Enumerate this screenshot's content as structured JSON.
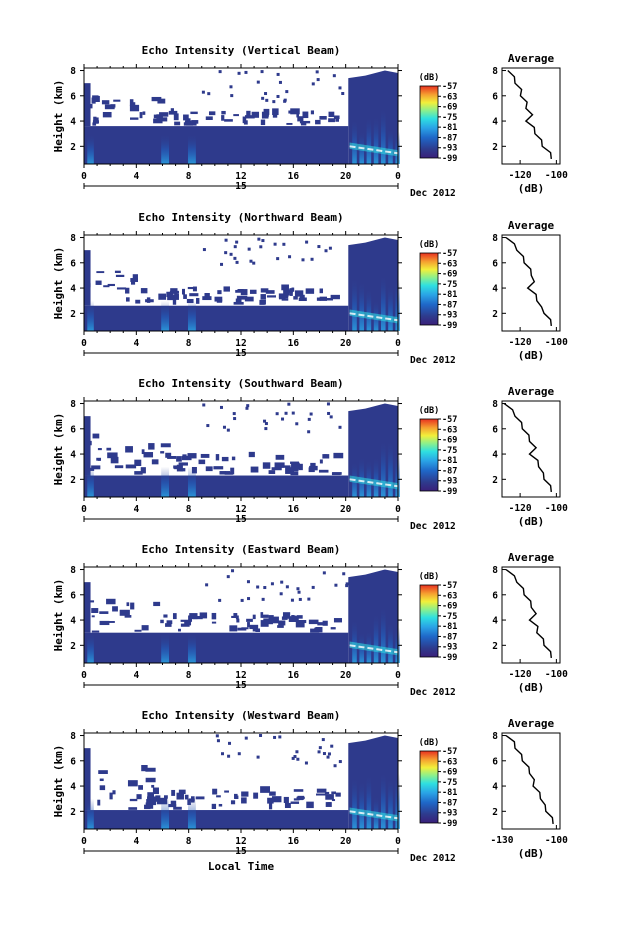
{
  "xlabel": "Local Time",
  "ylabel": "Height (km)",
  "profile_title": "Average",
  "profile_xlabel": "(dB)",
  "colorbar_unit": "(dB)",
  "date_label": "Dec 2012",
  "day_label": "15",
  "x_ticks": [
    "0",
    "4",
    "8",
    "12",
    "16",
    "20",
    "0"
  ],
  "y_ticks": [
    "8",
    "6",
    "4",
    "2"
  ],
  "colorbar_ticks": [
    "-57",
    "-63",
    "-69",
    "-75",
    "-81",
    "-87",
    "-93",
    "-99"
  ],
  "colors": {
    "white": "#ffffff",
    "no_echo_blue": "#2e3a8c",
    "colormap": [
      "#3a1f7a",
      "#2e3a8c",
      "#1f66c7",
      "#2aa4e6",
      "#2fe0e0",
      "#8cf08c",
      "#f2f03a",
      "#f5a030",
      "#e83020"
    ]
  },
  "chart_data": [
    {
      "type": "heatmap",
      "title": "Echo Intensity (Vertical Beam)",
      "xlabel": "",
      "ylabel": "Height (km)",
      "xlim": [
        0,
        24
      ],
      "ylim": [
        0.6,
        8.2
      ],
      "colorbar": {
        "label": "(dB)",
        "range": [
          -99,
          -57
        ],
        "ticks": [
          -57,
          -63,
          -69,
          -75,
          -81,
          -87,
          -93,
          -99
        ]
      },
      "profile": {
        "title": "Average",
        "xlabel": "(dB)",
        "xlim": [
          -130,
          -98
        ],
        "xticks": [
          "-120",
          "-100"
        ],
        "height": [
          8,
          7.5,
          7,
          6.5,
          6,
          5.5,
          5,
          4.5,
          4,
          3.5,
          3,
          2.5,
          2,
          1.5,
          1
        ],
        "values": [
          -126,
          -124,
          -122,
          -120,
          -119,
          -117,
          -116,
          -114,
          -116,
          -113,
          -111,
          -109,
          -107,
          -104,
          -102
        ]
      }
    },
    {
      "type": "heatmap",
      "title": "Echo Intensity (Northward Beam)",
      "xlabel": "",
      "ylabel": "Height (km)",
      "xlim": [
        0,
        24
      ],
      "ylim": [
        0.6,
        8.2
      ],
      "colorbar": {
        "label": "(dB)",
        "range": [
          -99,
          -57
        ],
        "ticks": [
          -57,
          -63,
          -69,
          -75,
          -81,
          -87,
          -93,
          -99
        ]
      },
      "profile": {
        "title": "Average",
        "xlabel": "(dB)",
        "xlim": [
          -130,
          -98
        ],
        "xticks": [
          "-120",
          "-100"
        ],
        "height": [
          8,
          7.5,
          7,
          6.5,
          6,
          5.5,
          5,
          4.5,
          4,
          3.5,
          3,
          2.5,
          2,
          1.5,
          1
        ],
        "values": [
          -127,
          -124,
          -121,
          -119,
          -117,
          -115,
          -113,
          -113,
          -115,
          -112,
          -110,
          -109,
          -106,
          -104,
          -102
        ]
      }
    },
    {
      "type": "heatmap",
      "title": "Echo Intensity (Southward Beam)",
      "xlabel": "",
      "ylabel": "Height (km)",
      "xlim": [
        0,
        24
      ],
      "ylim": [
        0.6,
        8.2
      ],
      "colorbar": {
        "label": "(dB)",
        "range": [
          -99,
          -57
        ],
        "ticks": [
          -57,
          -63,
          -69,
          -75,
          -81,
          -87,
          -93,
          -99
        ]
      },
      "profile": {
        "title": "Average",
        "xlabel": "(dB)",
        "xlim": [
          -130,
          -98
        ],
        "xticks": [
          "-120",
          "-100"
        ],
        "height": [
          8,
          7.5,
          7,
          6.5,
          6,
          5.5,
          5,
          4.5,
          4,
          3.5,
          3,
          2.5,
          2,
          1.5,
          1
        ],
        "values": [
          -128,
          -125,
          -122,
          -120,
          -118,
          -116,
          -114,
          -112,
          -114,
          -111,
          -109,
          -108,
          -106,
          -104,
          -102
        ]
      }
    },
    {
      "type": "heatmap",
      "title": "Echo Intensity (Eastward Beam)",
      "xlabel": "",
      "ylabel": "Height (km)",
      "xlim": [
        0,
        24
      ],
      "ylim": [
        0.6,
        8.2
      ],
      "colorbar": {
        "label": "(dB)",
        "range": [
          -99,
          -57
        ],
        "ticks": [
          -57,
          -63,
          -69,
          -75,
          -81,
          -87,
          -93,
          -99
        ]
      },
      "profile": {
        "title": "Average",
        "xlabel": "(dB)",
        "xlim": [
          -130,
          -98
        ],
        "xticks": [
          "-120",
          "-100"
        ],
        "height": [
          8,
          7.5,
          7,
          6.5,
          6,
          5.5,
          5,
          4.5,
          4,
          3.5,
          3,
          2.5,
          2,
          1.5,
          1
        ],
        "values": [
          -127,
          -124,
          -121,
          -119,
          -117,
          -115,
          -113,
          -112,
          -114,
          -111,
          -110,
          -108,
          -106,
          -104,
          -102
        ]
      }
    },
    {
      "type": "heatmap",
      "title": "Echo Intensity (Westward Beam)",
      "xlabel": "Local Time",
      "ylabel": "Height (km)",
      "xlim": [
        0,
        24
      ],
      "ylim": [
        0.6,
        8.2
      ],
      "colorbar": {
        "label": "(dB)",
        "range": [
          -99,
          -57
        ],
        "ticks": [
          -57,
          -63,
          -69,
          -75,
          -81,
          -87,
          -93,
          -99
        ]
      },
      "profile": {
        "title": "Average",
        "xlabel": "(dB)",
        "xlim": [
          -130,
          -98
        ],
        "xticks": [
          "-130",
          "-100"
        ],
        "height": [
          8,
          7.5,
          7,
          6.5,
          6,
          5.5,
          5,
          4.5,
          4,
          3.5,
          3,
          2.5,
          2,
          1.5,
          1
        ],
        "values": [
          -127,
          -124,
          -122,
          -120,
          -118,
          -116,
          -114,
          -113,
          -112,
          -110,
          -108,
          -107,
          -105,
          -103,
          -101
        ]
      }
    }
  ]
}
